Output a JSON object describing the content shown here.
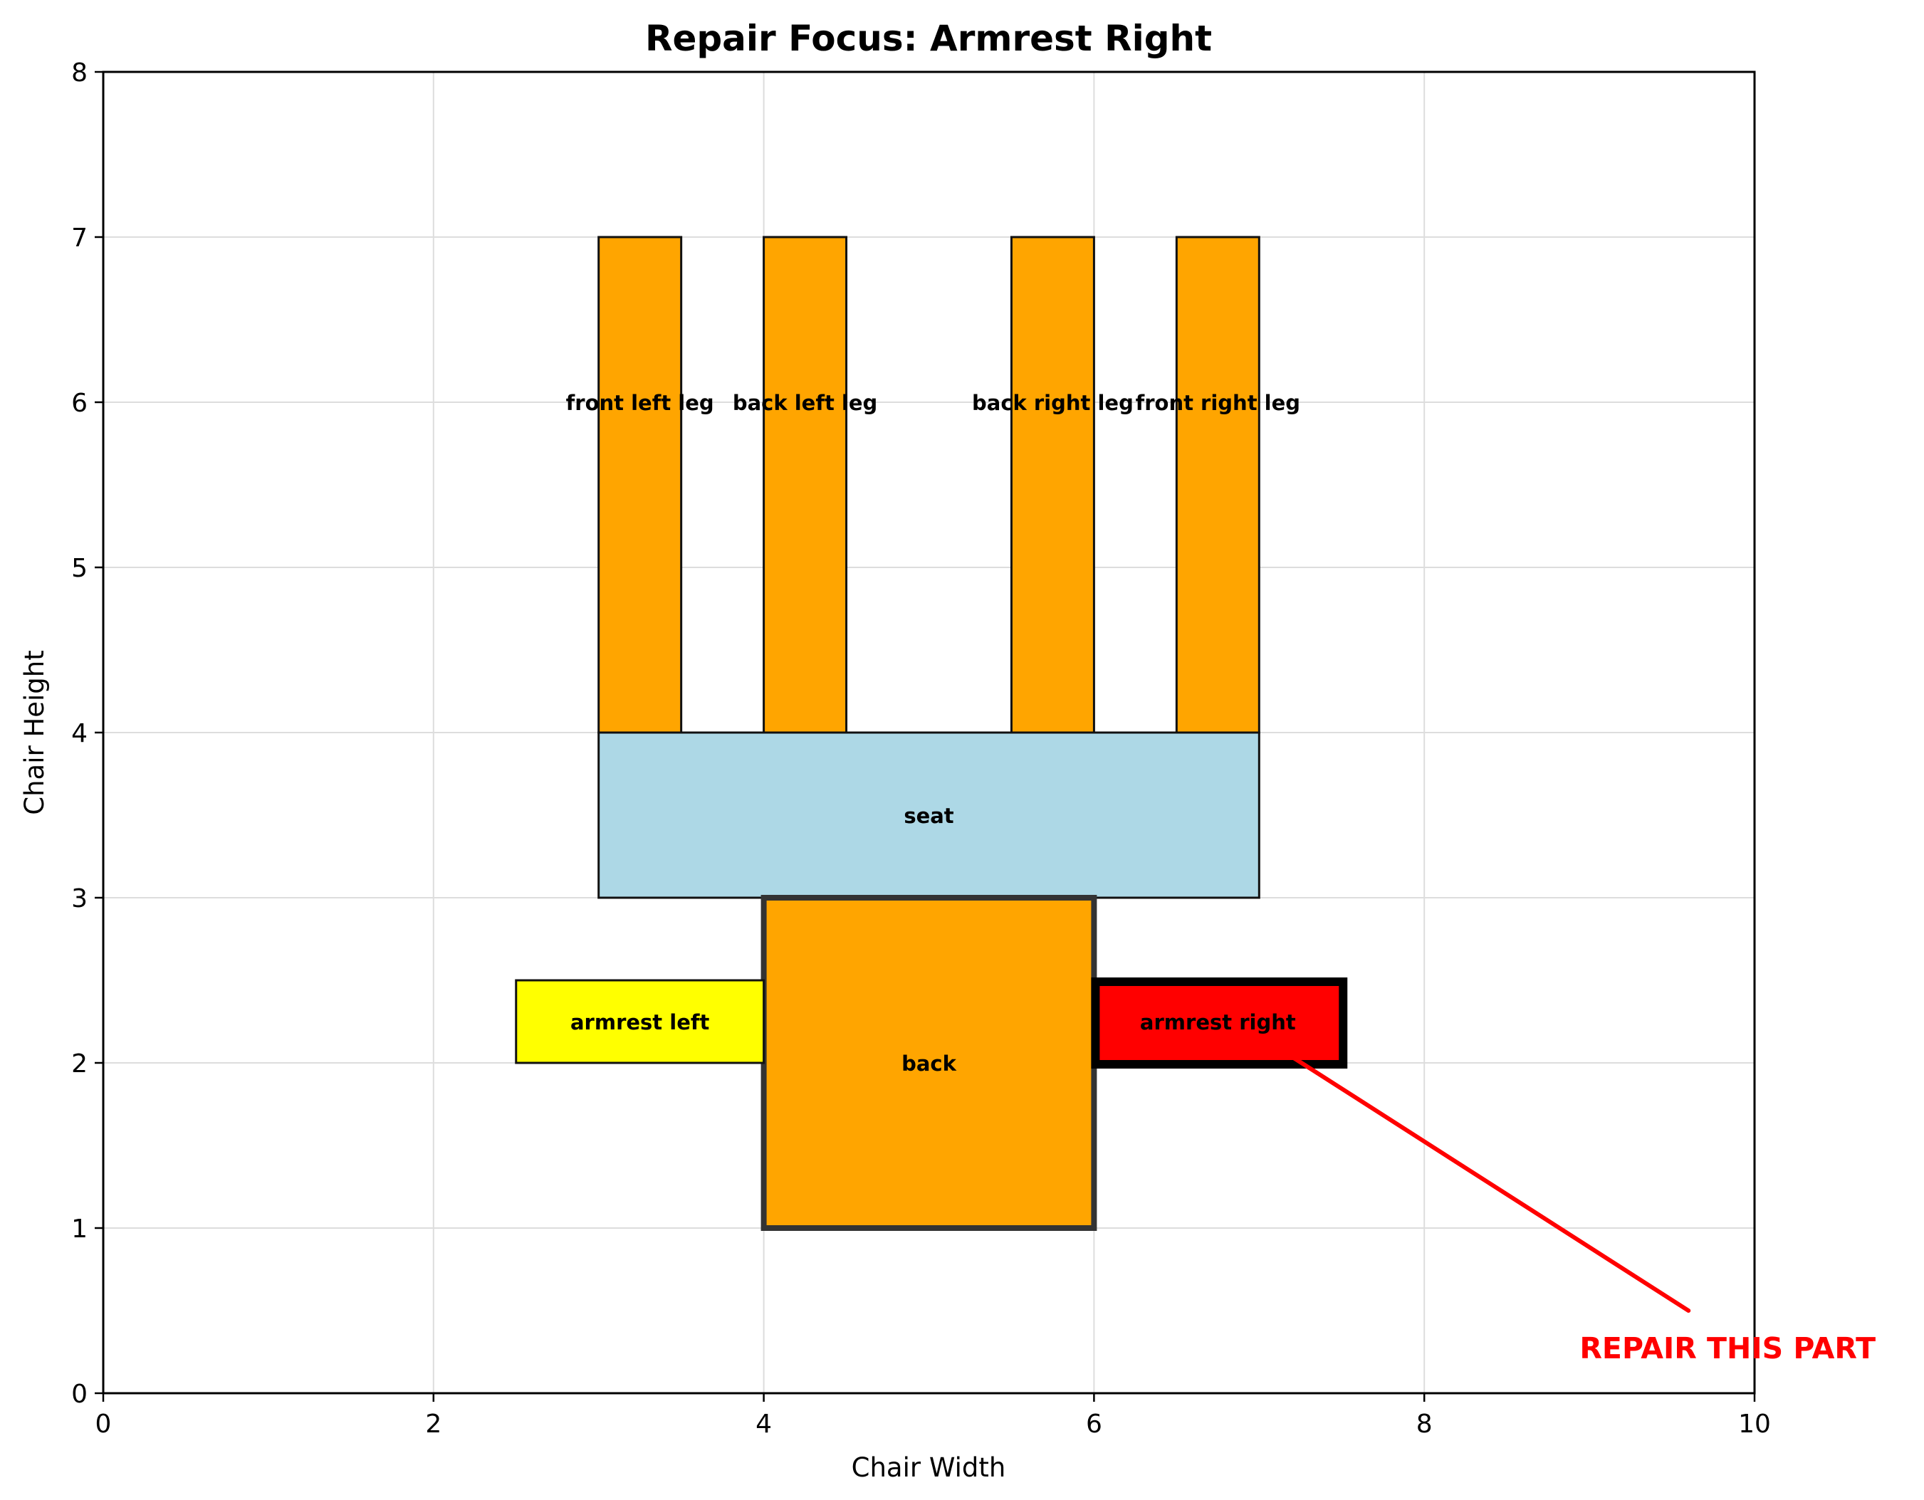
{
  "chart_data": {
    "type": "diagram",
    "title": "Repair Focus: Armrest Right",
    "xlabel": "Chair Width",
    "ylabel": "Chair Height",
    "xlim": [
      0,
      10
    ],
    "ylim": [
      0,
      8
    ],
    "xticks": [
      "0",
      "2",
      "4",
      "6",
      "8",
      "10"
    ],
    "yticks": [
      "0",
      "1",
      "2",
      "3",
      "4",
      "5",
      "6",
      "7",
      "8"
    ],
    "grid": true,
    "parts": [
      {
        "name": "front left leg",
        "x": 3,
        "y": 4,
        "width": 0.5,
        "height": 3,
        "color": "#ffa500",
        "highlight": "none"
      },
      {
        "name": "back left leg",
        "x": 4,
        "y": 4,
        "width": 0.5,
        "height": 3,
        "color": "#ffa500",
        "highlight": "none"
      },
      {
        "name": "back right leg",
        "x": 5.5,
        "y": 4,
        "width": 0.5,
        "height": 3,
        "color": "#ffa500",
        "highlight": "none"
      },
      {
        "name": "front right leg",
        "x": 6.5,
        "y": 4,
        "width": 0.5,
        "height": 3,
        "color": "#ffa500",
        "highlight": "none"
      },
      {
        "name": "seat",
        "x": 3,
        "y": 3,
        "width": 4,
        "height": 1,
        "color": "#add8e6",
        "highlight": "none"
      },
      {
        "name": "back",
        "x": 4,
        "y": 1,
        "width": 2,
        "height": 2,
        "color": "#ffa500",
        "highlight": "medium"
      },
      {
        "name": "armrest left",
        "x": 2.5,
        "y": 2,
        "width": 1.5,
        "height": 0.5,
        "color": "#ffff00",
        "highlight": "none"
      },
      {
        "name": "armrest right",
        "x": 6,
        "y": 2,
        "width": 1.5,
        "height": 0.5,
        "color": "#ff0000",
        "highlight": "strong"
      }
    ],
    "annotation": {
      "text": "REPAIR THIS PART",
      "color": "#ff0000",
      "point_to": [
        7.1,
        2.1
      ],
      "text_at": [
        9.6,
        0.5
      ]
    }
  }
}
